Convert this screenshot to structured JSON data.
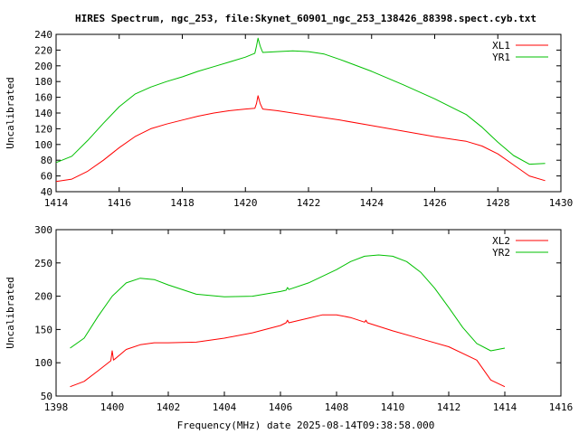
{
  "title": "HIRES Spectrum, ngc_253, file:Skynet_60901_ngc_253_138426_88398.spect.cyb.txt",
  "xlabel": "Frequency(MHz) date 2025-08-14T09:38:58.000",
  "chart_data": [
    {
      "type": "line",
      "ylabel": "Uncalibrated",
      "xlim": [
        1414,
        1430
      ],
      "ylim": [
        40,
        240
      ],
      "xticks": [
        "1414",
        "1416",
        "1418",
        "1420",
        "1422",
        "1424",
        "1426",
        "1428",
        "1430"
      ],
      "yticks": [
        "40",
        "60",
        "80",
        "100",
        "120",
        "140",
        "160",
        "180",
        "200",
        "220",
        "240"
      ],
      "legend_position": "top-right",
      "series": [
        {
          "name": "XL1",
          "color": "#ff0000",
          "points": [
            [
              1414.0,
              53
            ],
            [
              1414.5,
              56
            ],
            [
              1415.0,
              66
            ],
            [
              1415.5,
              80
            ],
            [
              1416.0,
              96
            ],
            [
              1416.5,
              110
            ],
            [
              1417.0,
              120
            ],
            [
              1417.5,
              126
            ],
            [
              1418.0,
              131
            ],
            [
              1418.5,
              136
            ],
            [
              1419.0,
              140
            ],
            [
              1419.5,
              143
            ],
            [
              1420.0,
              145
            ],
            [
              1420.3,
              146
            ],
            [
              1420.35,
              152
            ],
            [
              1420.4,
              162
            ],
            [
              1420.47,
              152
            ],
            [
              1420.55,
              145
            ],
            [
              1421.0,
              143
            ],
            [
              1422.0,
              137
            ],
            [
              1423.0,
              131
            ],
            [
              1424.0,
              124
            ],
            [
              1425.0,
              117
            ],
            [
              1426.0,
              110
            ],
            [
              1427.0,
              104
            ],
            [
              1427.5,
              98
            ],
            [
              1428.0,
              88
            ],
            [
              1428.5,
              74
            ],
            [
              1429.0,
              60
            ],
            [
              1429.5,
              54
            ]
          ]
        },
        {
          "name": "YR1",
          "color": "#00c000",
          "points": [
            [
              1414.0,
              77
            ],
            [
              1414.5,
              85
            ],
            [
              1415.0,
              105
            ],
            [
              1415.5,
              127
            ],
            [
              1416.0,
              148
            ],
            [
              1416.5,
              164
            ],
            [
              1417.0,
              173
            ],
            [
              1417.5,
              180
            ],
            [
              1418.0,
              186
            ],
            [
              1418.5,
              193
            ],
            [
              1419.0,
              199
            ],
            [
              1419.5,
              205
            ],
            [
              1420.0,
              211
            ],
            [
              1420.3,
              216
            ],
            [
              1420.35,
              225
            ],
            [
              1420.4,
              235
            ],
            [
              1420.47,
              225
            ],
            [
              1420.55,
              217
            ],
            [
              1421.0,
              218
            ],
            [
              1421.5,
              219
            ],
            [
              1422.0,
              218
            ],
            [
              1422.5,
              215
            ],
            [
              1423.0,
              208
            ],
            [
              1424.0,
              193
            ],
            [
              1425.0,
              176
            ],
            [
              1426.0,
              158
            ],
            [
              1427.0,
              138
            ],
            [
              1427.5,
              122
            ],
            [
              1428.0,
              103
            ],
            [
              1428.5,
              86
            ],
            [
              1429.0,
              75
            ],
            [
              1429.5,
              76
            ]
          ]
        }
      ]
    },
    {
      "type": "line",
      "ylabel": "Uncalibrated",
      "xlim": [
        1398,
        1416
      ],
      "ylim": [
        50,
        300
      ],
      "xticks": [
        "1398",
        "1400",
        "1402",
        "1404",
        "1406",
        "1408",
        "1410",
        "1412",
        "1414",
        "1416"
      ],
      "yticks": [
        "50",
        "100",
        "150",
        "200",
        "250",
        "300"
      ],
      "legend_position": "top-right",
      "series": [
        {
          "name": "XL2",
          "color": "#ff0000",
          "points": [
            [
              1398.5,
              64
            ],
            [
              1399.0,
              72
            ],
            [
              1399.5,
              88
            ],
            [
              1399.95,
              103
            ],
            [
              1400.0,
              118
            ],
            [
              1400.05,
              104
            ],
            [
              1400.5,
              120
            ],
            [
              1401.0,
              127
            ],
            [
              1401.5,
              130
            ],
            [
              1402.0,
              130
            ],
            [
              1403.0,
              131
            ],
            [
              1404.0,
              137
            ],
            [
              1405.0,
              145
            ],
            [
              1406.0,
              156
            ],
            [
              1406.2,
              160
            ],
            [
              1406.25,
              164
            ],
            [
              1406.3,
              160
            ],
            [
              1407.0,
              167
            ],
            [
              1407.5,
              172
            ],
            [
              1408.0,
              172
            ],
            [
              1408.5,
              168
            ],
            [
              1409.0,
              161
            ],
            [
              1409.05,
              164
            ],
            [
              1409.1,
              160
            ],
            [
              1410.0,
              148
            ],
            [
              1411.0,
              136
            ],
            [
              1412.0,
              124
            ],
            [
              1413.0,
              104
            ],
            [
              1413.5,
              74
            ],
            [
              1414.0,
              64
            ]
          ]
        },
        {
          "name": "YR2",
          "color": "#00c000",
          "points": [
            [
              1398.5,
              122
            ],
            [
              1399.0,
              137
            ],
            [
              1399.5,
              170
            ],
            [
              1400.0,
              200
            ],
            [
              1400.5,
              220
            ],
            [
              1401.0,
              227
            ],
            [
              1401.5,
              225
            ],
            [
              1402.0,
              217
            ],
            [
              1403.0,
              203
            ],
            [
              1404.0,
              199
            ],
            [
              1405.0,
              200
            ],
            [
              1406.0,
              207
            ],
            [
              1406.2,
              209
            ],
            [
              1406.25,
              213
            ],
            [
              1406.3,
              210
            ],
            [
              1407.0,
              220
            ],
            [
              1408.0,
              240
            ],
            [
              1408.5,
              252
            ],
            [
              1409.0,
              260
            ],
            [
              1409.5,
              262
            ],
            [
              1410.0,
              260
            ],
            [
              1410.5,
              252
            ],
            [
              1411.0,
              236
            ],
            [
              1411.5,
              212
            ],
            [
              1412.0,
              183
            ],
            [
              1412.5,
              153
            ],
            [
              1413.0,
              129
            ],
            [
              1413.5,
              118
            ],
            [
              1414.0,
              122
            ]
          ]
        }
      ]
    }
  ]
}
